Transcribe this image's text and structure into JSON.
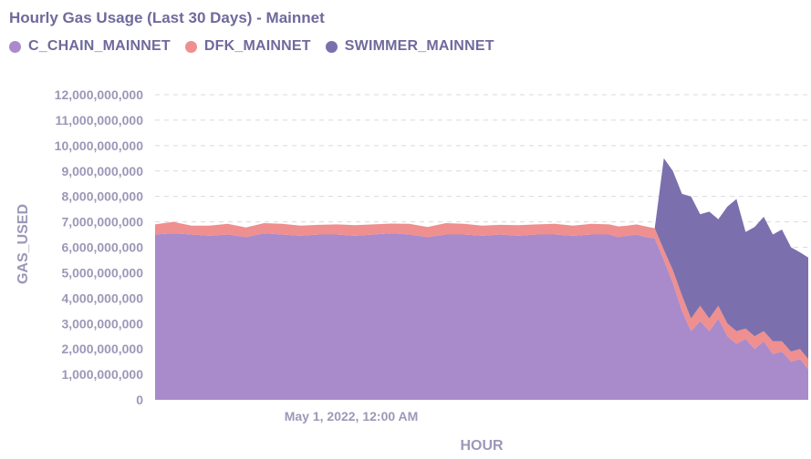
{
  "chart_data": {
    "type": "area",
    "title": "Hourly Gas Usage (Last 30 Days) - Mainnet",
    "xlabel": "HOUR",
    "ylabel": "GAS_USED",
    "stacked": true,
    "x_tick_labels": [
      "May 1, 2022, 12:00 AM"
    ],
    "y_ticks": [
      0,
      1000000000,
      2000000000,
      3000000000,
      4000000000,
      5000000000,
      6000000000,
      7000000000,
      8000000000,
      9000000000,
      10000000000,
      11000000000,
      12000000000
    ],
    "y_tick_labels": [
      "0",
      "1,000,000,000",
      "2,000,000,000",
      "3,000,000,000",
      "4,000,000,000",
      "5,000,000,000",
      "6,000,000,000",
      "7,000,000,000",
      "8,000,000,000",
      "9,000,000,000",
      "10,000,000,000",
      "11,000,000,000",
      "12,000,000,000"
    ],
    "ylim": [
      0,
      12000000000
    ],
    "grid": "horizontal dashed",
    "legend_position": "top-left",
    "x_index": [
      0,
      20,
      40,
      60,
      80,
      100,
      120,
      140,
      160,
      180,
      200,
      220,
      240,
      260,
      280,
      300,
      320,
      340,
      360,
      380,
      400,
      420,
      440,
      460,
      480,
      500,
      510,
      520,
      530,
      540,
      550,
      560,
      570,
      580,
      590,
      600,
      610,
      620,
      630,
      640,
      650,
      660,
      670,
      680,
      690,
      700,
      710,
      719
    ],
    "series": [
      {
        "name": "C_CHAIN_MAINNET",
        "color": "#a98bcb",
        "values": [
          6500000000,
          6550000000,
          6500000000,
          6450000000,
          6500000000,
          6400000000,
          6550000000,
          6500000000,
          6450000000,
          6500000000,
          6500000000,
          6450000000,
          6500000000,
          6550000000,
          6500000000,
          6400000000,
          6500000000,
          6500000000,
          6450000000,
          6500000000,
          6450000000,
          6500000000,
          6500000000,
          6450000000,
          6500000000,
          6500000000,
          6400000000,
          6450000000,
          6500000000,
          6400000000,
          6350000000,
          5500000000,
          4600000000,
          3500000000,
          2700000000,
          3100000000,
          2700000000,
          3200000000,
          2500000000,
          2200000000,
          2400000000,
          2000000000,
          2300000000,
          1800000000,
          1900000000,
          1500000000,
          1600000000,
          1200000000
        ]
      },
      {
        "name": "DFK_MAINNET",
        "color": "#ef8f8f",
        "values": [
          400000000,
          450000000,
          350000000,
          400000000,
          420000000,
          380000000,
          400000000,
          420000000,
          400000000,
          380000000,
          400000000,
          420000000,
          400000000,
          380000000,
          420000000,
          400000000,
          450000000,
          420000000,
          400000000,
          380000000,
          420000000,
          400000000,
          420000000,
          400000000,
          420000000,
          400000000,
          420000000,
          400000000,
          400000000,
          420000000,
          400000000,
          400000000,
          500000000,
          600000000,
          500000000,
          600000000,
          500000000,
          500000000,
          500000000,
          500000000,
          400000000,
          500000000,
          400000000,
          500000000,
          400000000,
          400000000,
          400000000,
          400000000
        ]
      },
      {
        "name": "SWIMMER_MAINNET",
        "color": "#7b70ad",
        "values": [
          0,
          0,
          0,
          0,
          0,
          0,
          0,
          0,
          0,
          0,
          0,
          0,
          0,
          0,
          0,
          0,
          0,
          0,
          0,
          0,
          0,
          0,
          0,
          0,
          0,
          0,
          0,
          0,
          0,
          0,
          0,
          3600000000,
          3900000000,
          4000000000,
          4800000000,
          3600000000,
          4200000000,
          3400000000,
          4600000000,
          5200000000,
          3800000000,
          4300000000,
          4500000000,
          4200000000,
          4400000000,
          4100000000,
          3800000000,
          4000000000
        ]
      }
    ]
  }
}
